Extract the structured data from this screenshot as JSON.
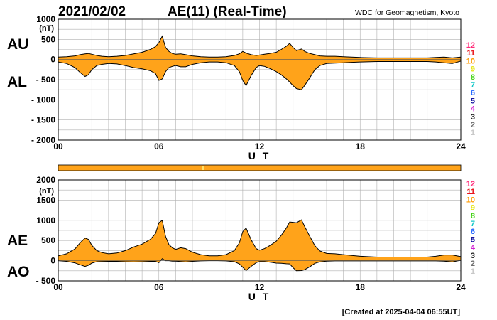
{
  "header": {
    "date": "2021/02/02",
    "title": "AE(11) (Real-Time)",
    "source": "WDC for Geomagnetism, Kyoto"
  },
  "footer": {
    "created": "[Created at 2025-04-04 06:55UT]"
  },
  "colors": {
    "fill": "#ffa31a",
    "line": "#000000",
    "grid": "#b0b0b0",
    "status_bar": "#ffa31a",
    "status_bar_mark": "#ffe066"
  },
  "station_counts": {
    "labels": [
      "12",
      "11",
      "10",
      "9",
      "8",
      "7",
      "6",
      "5",
      "4",
      "3",
      "2",
      "1"
    ],
    "colors": [
      "#ff2d7a",
      "#e8141b",
      "#ff9a00",
      "#e6e61a",
      "#3cd20c",
      "#14c8c8",
      "#1e64ff",
      "#1414a0",
      "#d21ed2",
      "#202020",
      "#6e6e6e",
      "#c8c8c8"
    ]
  },
  "chart_data": [
    {
      "type": "area",
      "panel": "AU/AL",
      "upper_label": "AU",
      "lower_label": "AL",
      "unit_label": "(nT)",
      "xlabel": "U T",
      "x_ticks": [
        "00",
        "06",
        "12",
        "18",
        "24"
      ],
      "y_ticks": [
        "1000",
        "500",
        "0",
        "- 500",
        "- 1000",
        "- 1500",
        "- 2000"
      ],
      "xlim": [
        0,
        24
      ],
      "ylim": [
        -2000,
        1000
      ],
      "x": [
        0,
        0.5,
        1,
        1.3,
        1.6,
        1.8,
        2,
        2.3,
        2.6,
        3,
        3.5,
        4,
        4.5,
        5,
        5.5,
        5.8,
        6,
        6.2,
        6.4,
        6.6,
        6.8,
        7,
        7.3,
        7.6,
        8,
        8.5,
        9,
        9.5,
        10,
        10.5,
        10.8,
        11,
        11.2,
        11.5,
        11.8,
        12,
        12.3,
        12.6,
        13,
        13.3,
        13.6,
        13.8,
        14,
        14.2,
        14.5,
        14.7,
        15,
        15.3,
        15.6,
        16,
        16.5,
        17,
        17.5,
        18,
        19,
        20,
        21,
        22,
        22.5,
        23,
        23.5,
        24
      ],
      "series": [
        {
          "name": "AU",
          "values": [
            60,
            70,
            90,
            120,
            140,
            150,
            130,
            100,
            80,
            70,
            80,
            100,
            140,
            180,
            250,
            320,
            420,
            580,
            300,
            200,
            150,
            130,
            140,
            120,
            90,
            70,
            60,
            60,
            70,
            100,
            140,
            200,
            160,
            120,
            100,
            110,
            130,
            150,
            180,
            250,
            330,
            400,
            300,
            220,
            260,
            200,
            150,
            120,
            90,
            80,
            80,
            70,
            60,
            50,
            40,
            40,
            40,
            40,
            50,
            60,
            40,
            60
          ]
        },
        {
          "name": "AL",
          "values": [
            -60,
            -100,
            -200,
            -320,
            -420,
            -380,
            -250,
            -150,
            -120,
            -100,
            -110,
            -150,
            -200,
            -230,
            -280,
            -350,
            -520,
            -480,
            -300,
            -200,
            -170,
            -150,
            -180,
            -180,
            -120,
            -80,
            -60,
            -60,
            -80,
            -150,
            -300,
            -520,
            -650,
            -400,
            -200,
            -150,
            -170,
            -220,
            -300,
            -380,
            -480,
            -560,
            -650,
            -720,
            -750,
            -640,
            -450,
            -250,
            -150,
            -100,
            -90,
            -80,
            -70,
            -60,
            -50,
            -50,
            -50,
            -50,
            -60,
            -80,
            -100,
            -40
          ]
        }
      ]
    },
    {
      "type": "area",
      "panel": "AE/AO",
      "upper_label": "AE",
      "lower_label": "AO",
      "unit_label": "(nT)",
      "xlabel": "U T",
      "x_ticks": [
        "00",
        "06",
        "12",
        "18",
        "24"
      ],
      "y_ticks": [
        "2000",
        "1500",
        "1000",
        "500",
        "0",
        "- 500"
      ],
      "xlim": [
        0,
        24
      ],
      "ylim": [
        -500,
        2000
      ],
      "x": [
        0,
        0.5,
        1,
        1.3,
        1.6,
        1.8,
        2,
        2.3,
        2.6,
        3,
        3.5,
        4,
        4.5,
        5,
        5.5,
        5.8,
        6,
        6.2,
        6.4,
        6.6,
        6.8,
        7,
        7.3,
        7.6,
        8,
        8.5,
        9,
        9.5,
        10,
        10.5,
        10.8,
        11,
        11.2,
        11.5,
        11.8,
        12,
        12.3,
        12.6,
        13,
        13.3,
        13.6,
        13.8,
        14,
        14.2,
        14.5,
        14.7,
        15,
        15.3,
        15.6,
        16,
        16.5,
        17,
        17.5,
        18,
        19,
        20,
        21,
        22,
        22.5,
        23,
        23.5,
        24
      ],
      "series": [
        {
          "name": "AE",
          "values": [
            120,
            170,
            290,
            440,
            560,
            530,
            380,
            250,
            200,
            170,
            190,
            250,
            340,
            410,
            530,
            670,
            940,
            1000,
            600,
            400,
            320,
            280,
            320,
            300,
            210,
            150,
            120,
            120,
            150,
            250,
            440,
            720,
            810,
            520,
            300,
            260,
            300,
            370,
            480,
            630,
            810,
            960,
            950,
            940,
            1010,
            840,
            600,
            370,
            240,
            180,
            170,
            150,
            130,
            110,
            90,
            90,
            90,
            90,
            110,
            140,
            140,
            100
          ]
        },
        {
          "name": "AO",
          "values": [
            0,
            -15,
            -55,
            -100,
            -140,
            -115,
            -60,
            -25,
            -20,
            -15,
            -15,
            -25,
            -30,
            -25,
            -15,
            -15,
            -50,
            50,
            0,
            0,
            -10,
            -10,
            -20,
            -30,
            -15,
            -5,
            0,
            0,
            -5,
            -25,
            -80,
            -160,
            -245,
            -140,
            -50,
            -20,
            -20,
            -35,
            -60,
            -65,
            -75,
            -80,
            -175,
            -250,
            -245,
            -220,
            -150,
            -65,
            -30,
            -10,
            -5,
            -5,
            -5,
            -5,
            -5,
            -5,
            -5,
            -5,
            -5,
            -10,
            -30,
            10
          ]
        }
      ]
    }
  ]
}
